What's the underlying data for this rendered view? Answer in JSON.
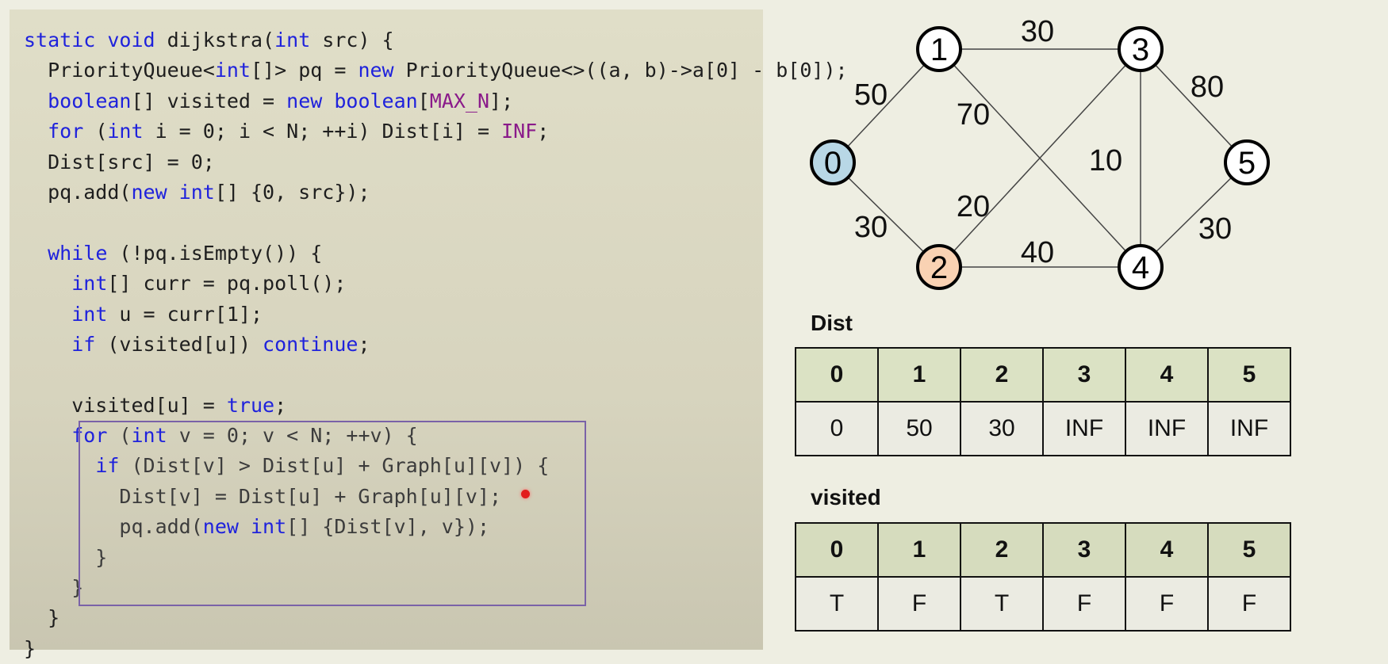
{
  "code": {
    "lines": [
      [
        {
          "t": "static void ",
          "c": "kw"
        },
        {
          "t": "dijkstra("
        },
        {
          "t": "int",
          "c": "kw"
        },
        {
          "t": " src) {"
        }
      ],
      [
        {
          "t": "  PriorityQueue<"
        },
        {
          "t": "int",
          "c": "kw"
        },
        {
          "t": "[]> pq = "
        },
        {
          "t": "new",
          "c": "kw"
        },
        {
          "t": " PriorityQueue<>((a, b)->a[0] - b[0]);"
        }
      ],
      [
        {
          "t": "  "
        },
        {
          "t": "boolean",
          "c": "kw"
        },
        {
          "t": "[] visited = "
        },
        {
          "t": "new boolean",
          "c": "kw"
        },
        {
          "t": "["
        },
        {
          "t": "MAX_N",
          "c": "cn"
        },
        {
          "t": "];"
        }
      ],
      [
        {
          "t": "  "
        },
        {
          "t": "for",
          "c": "kw"
        },
        {
          "t": " ("
        },
        {
          "t": "int",
          "c": "kw"
        },
        {
          "t": " i = 0; i < N; ++i) Dist[i] = "
        },
        {
          "t": "INF",
          "c": "cn"
        },
        {
          "t": ";"
        }
      ],
      [
        {
          "t": "  Dist[src] = 0;"
        }
      ],
      [
        {
          "t": "  pq.add("
        },
        {
          "t": "new int",
          "c": "kw"
        },
        {
          "t": "[] {0, src});"
        }
      ],
      [
        {
          "t": ""
        }
      ],
      [
        {
          "t": "  "
        },
        {
          "t": "while",
          "c": "kw"
        },
        {
          "t": " (!pq.isEmpty()) {"
        }
      ],
      [
        {
          "t": "    "
        },
        {
          "t": "int",
          "c": "kw"
        },
        {
          "t": "[] curr = pq.poll();"
        }
      ],
      [
        {
          "t": "    "
        },
        {
          "t": "int",
          "c": "kw"
        },
        {
          "t": " u = curr[1];"
        }
      ],
      [
        {
          "t": "    "
        },
        {
          "t": "if",
          "c": "kw"
        },
        {
          "t": " (visited[u]) "
        },
        {
          "t": "continue",
          "c": "kw"
        },
        {
          "t": ";"
        }
      ],
      [
        {
          "t": ""
        }
      ],
      [
        {
          "t": "    visited[u] = "
        },
        {
          "t": "true",
          "c": "kw"
        },
        {
          "t": ";"
        }
      ],
      [
        {
          "t": "    "
        },
        {
          "t": "for",
          "c": "kw"
        },
        {
          "t": " (",
          "c": "dim"
        },
        {
          "t": "int",
          "c": "kw"
        },
        {
          "t": " v = 0; v < N; ++v) {",
          "c": "dim"
        }
      ],
      [
        {
          "t": "      "
        },
        {
          "t": "if",
          "c": "kw"
        },
        {
          "t": " (Dist[v] > Dist[u] + Graph[u][v]) {",
          "c": "dim"
        }
      ],
      [
        {
          "t": "        Dist[v] = Dist[u] + Graph[u][v];",
          "c": "dim"
        }
      ],
      [
        {
          "t": "        pq.add(",
          "c": "dim"
        },
        {
          "t": "new int",
          "c": "kw"
        },
        {
          "t": "[] {Dist[v], v});",
          "c": "dim"
        }
      ],
      [
        {
          "t": "      }",
          "c": "dim"
        }
      ],
      [
        {
          "t": "    }",
          "c": "dim"
        }
      ],
      [
        {
          "t": "  }"
        }
      ],
      [
        {
          "t": "}"
        }
      ]
    ]
  },
  "graph": {
    "nodes": [
      {
        "id": "0",
        "fill": "#b8d7e6"
      },
      {
        "id": "1",
        "fill": "#ffffff"
      },
      {
        "id": "2",
        "fill": "#f9d2b3"
      },
      {
        "id": "3",
        "fill": "#ffffff"
      },
      {
        "id": "4",
        "fill": "#ffffff"
      },
      {
        "id": "5",
        "fill": "#ffffff"
      }
    ],
    "edges": [
      {
        "from": "0",
        "to": "1",
        "weight": "50"
      },
      {
        "from": "0",
        "to": "2",
        "weight": "30"
      },
      {
        "from": "1",
        "to": "3",
        "weight": "30"
      },
      {
        "from": "1",
        "to": "4",
        "weight": "70"
      },
      {
        "from": "2",
        "to": "3",
        "weight": "20"
      },
      {
        "from": "2",
        "to": "4",
        "weight": "40"
      },
      {
        "from": "3",
        "to": "4",
        "weight": "10"
      },
      {
        "from": "3",
        "to": "5",
        "weight": "80"
      },
      {
        "from": "4",
        "to": "5",
        "weight": "30"
      }
    ]
  },
  "dist": {
    "title": "Dist",
    "headers": [
      "0",
      "1",
      "2",
      "3",
      "4",
      "5"
    ],
    "values": [
      "0",
      "50",
      "30",
      "INF",
      "INF",
      "INF"
    ]
  },
  "visited": {
    "title": "visited",
    "headers": [
      "0",
      "1",
      "2",
      "3",
      "4",
      "5"
    ],
    "values": [
      "T",
      "F",
      "T",
      "F",
      "F",
      "F"
    ],
    "highlight_color": "#1a5c96"
  }
}
